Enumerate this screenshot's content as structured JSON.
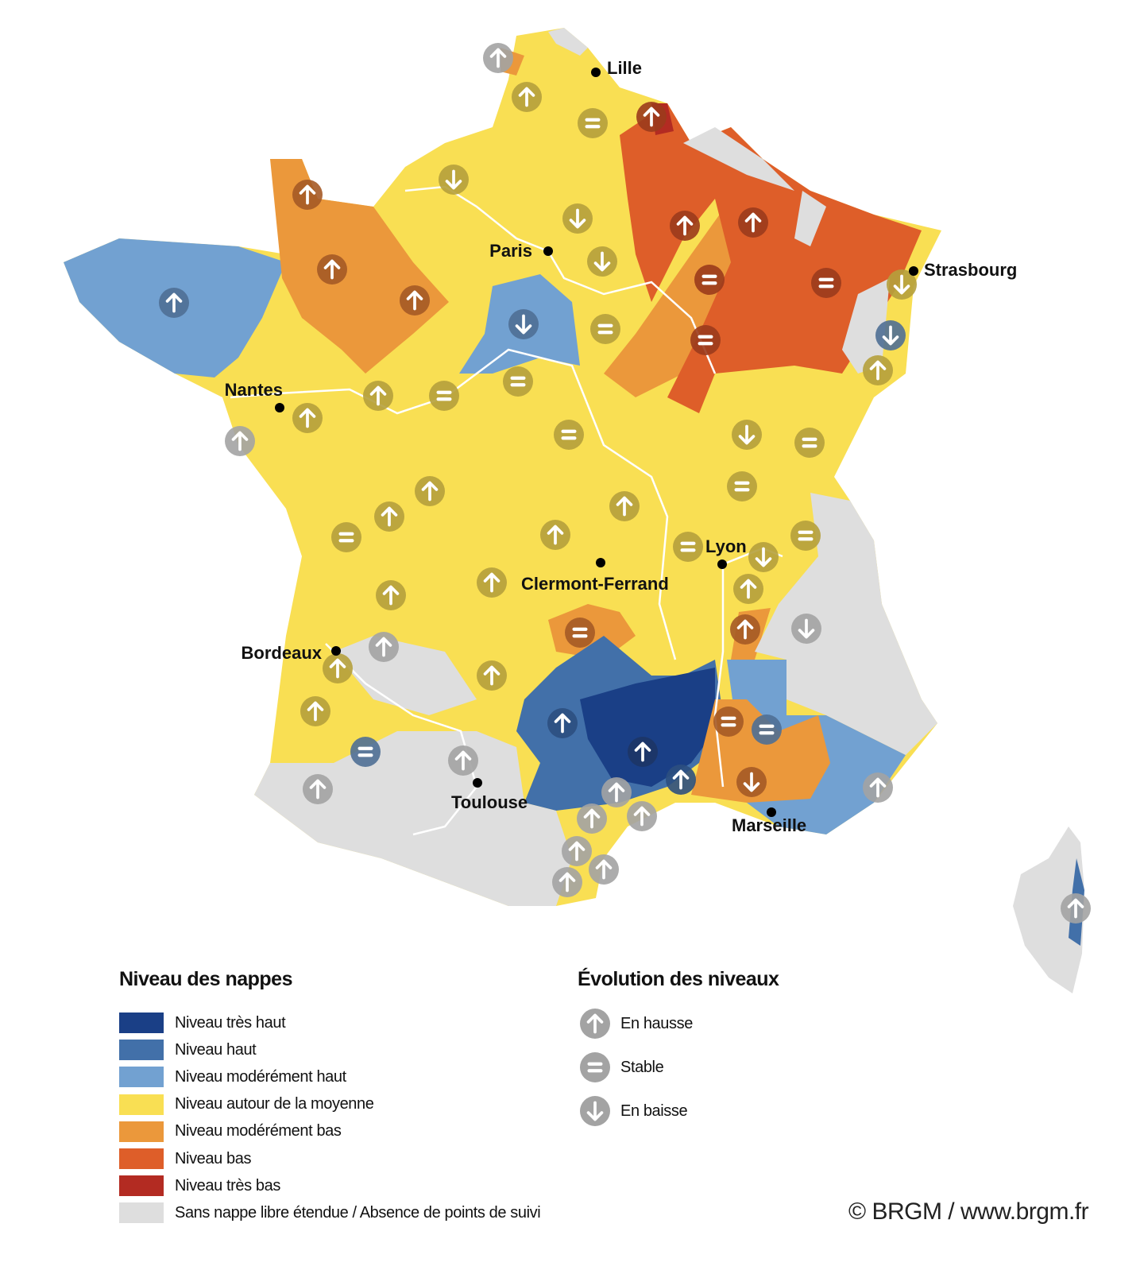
{
  "colors": {
    "tres_haut": "#1a3f86",
    "haut": "#4270a9",
    "moderement_haut": "#72a1d1",
    "moyenne": "#f9df53",
    "moderement_bas": "#eb983b",
    "bas": "#de5e29",
    "tres_bas": "#b32b22",
    "sans_nappe": "#dedede",
    "icon_gray": "#a3a3a3"
  },
  "cities": [
    "Lille",
    "Paris",
    "Strasbourg",
    "Nantes",
    "Lyon",
    "Clermont-Ferrand",
    "Bordeaux",
    "Toulouse",
    "Marseille"
  ],
  "map": {
    "markers": [
      "up",
      "up",
      "stable",
      "up",
      "down",
      "up",
      "down",
      "up",
      "up",
      "up",
      "down",
      "stable",
      "stable",
      "down",
      "up",
      "up",
      "down",
      "stable",
      "stable",
      "down",
      "up",
      "stable",
      "up",
      "stable",
      "up",
      "up",
      "stable",
      "down",
      "stable",
      "stable",
      "up",
      "up",
      "up",
      "stable",
      "up",
      "stable",
      "stable",
      "down",
      "up",
      "up",
      "up",
      "up",
      "down",
      "stable",
      "up",
      "up",
      "up",
      "up",
      "up",
      "stable",
      "stable",
      "stable",
      "up",
      "up",
      "up",
      "down",
      "up",
      "up",
      "up",
      "up",
      "up",
      "up",
      "up",
      "up",
      "up"
    ]
  },
  "legend_levels": {
    "title": "Niveau des nappes",
    "items": [
      {
        "label": "Niveau très haut",
        "color": "#1a3f86"
      },
      {
        "label": "Niveau haut",
        "color": "#4270a9"
      },
      {
        "label": "Niveau modérément haut",
        "color": "#72a1d1"
      },
      {
        "label": "Niveau autour de la moyenne",
        "color": "#f9df53"
      },
      {
        "label": "Niveau modérément bas",
        "color": "#eb983b"
      },
      {
        "label": "Niveau bas",
        "color": "#de5e29"
      },
      {
        "label": "Niveau très bas",
        "color": "#b32b22"
      },
      {
        "label": "Sans nappe libre étendue / Absence de points de suivi",
        "color": "#dedede"
      }
    ]
  },
  "legend_trend": {
    "title": "Évolution des niveaux",
    "items": [
      {
        "label": "En hausse",
        "icon": "arrow-up-icon"
      },
      {
        "label": "Stable",
        "icon": "equals-icon"
      },
      {
        "label": "En baisse",
        "icon": "arrow-down-icon"
      }
    ]
  },
  "credit": "© BRGM / www.brgm.fr"
}
